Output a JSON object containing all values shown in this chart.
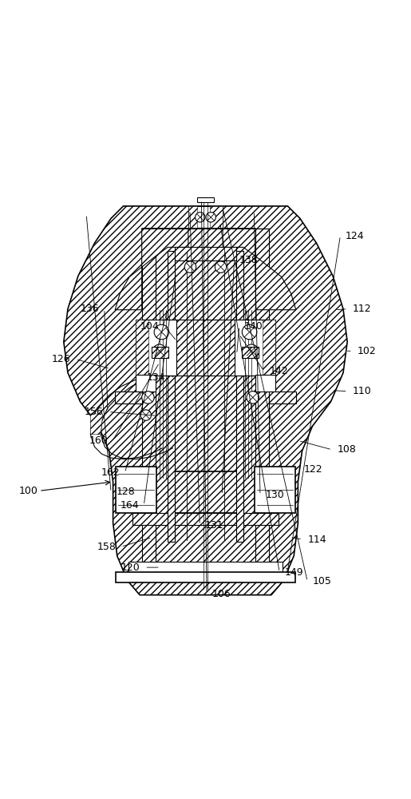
{
  "bg_color": "#ffffff",
  "line_color": "#000000",
  "label_fontsize": 9,
  "figsize": [
    5.15,
    10.0
  ],
  "dpi": 100
}
